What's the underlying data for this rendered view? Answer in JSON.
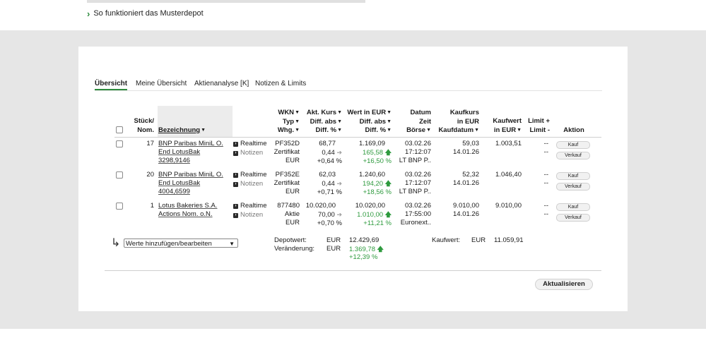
{
  "top_link": {
    "text": "So funktioniert das Musterdepot"
  },
  "tabs": [
    "Übersicht",
    "Meine Übersicht",
    "Aktienanalyse [K]",
    "Notizen & Limits"
  ],
  "headers": {
    "stueck": [
      "Stück/",
      "Nom."
    ],
    "bezeichnung": "Bezeichnung",
    "wkn": [
      "WKN",
      "Typ",
      "Whg."
    ],
    "kurs": [
      "Akt. Kurs",
      "Diff. abs",
      "Diff. %"
    ],
    "wert": [
      "Wert in EUR",
      "Diff. abs",
      "Diff. %"
    ],
    "datum": [
      "Datum",
      "Zeit",
      "Börse"
    ],
    "kaufkurs": [
      "Kaufkurs",
      "in EUR",
      "Kaufdatum"
    ],
    "kaufwert": [
      "Kaufwert",
      "in EUR"
    ],
    "limit": [
      "Limit +",
      "Limit -"
    ],
    "aktion": "Aktion"
  },
  "actions": {
    "realtime": "Realtime",
    "notizen": "Notizen",
    "kauf": "Kauf",
    "verkauf": "Verkauf"
  },
  "rows": [
    {
      "qty": "17",
      "name": [
        "BNP Paribas MiniL O.",
        "End LotusBak",
        "3298,9146"
      ],
      "wkn": "PF352D",
      "typ": "Zertifikat",
      "whg": "EUR",
      "kurs": "68,77",
      "kurs_diff_abs": "0,44",
      "kurs_diff_pct": "+0,64 %",
      "wert": "1.169,09",
      "wert_diff_abs": "165,58",
      "wert_diff_pct": "+16,50 %",
      "datum": "03.02.26",
      "zeit": "17:12:07",
      "boerse": "LT BNP P..",
      "kaufkurs": "59,03",
      "kaufdatum": "14.01.26",
      "kaufwert": "1.003,51",
      "limit_plus": "--",
      "limit_minus": "--"
    },
    {
      "qty": "20",
      "name": [
        "BNP Paribas MiniL O.",
        "End LotusBak",
        "4004,6599"
      ],
      "wkn": "PF352E",
      "typ": "Zertifikat",
      "whg": "EUR",
      "kurs": "62,03",
      "kurs_diff_abs": "0,44",
      "kurs_diff_pct": "+0,71 %",
      "wert": "1.240,60",
      "wert_diff_abs": "194,20",
      "wert_diff_pct": "+18,56 %",
      "datum": "03.02.26",
      "zeit": "17:12:07",
      "boerse": "LT BNP P..",
      "kaufkurs": "52,32",
      "kaufdatum": "14.01.26",
      "kaufwert": "1.046,40",
      "limit_plus": "--",
      "limit_minus": "--"
    },
    {
      "qty": "1",
      "name": [
        "Lotus Bakeries S.A.",
        "Actions Nom. o.N."
      ],
      "wkn": "877480",
      "typ": "Aktie",
      "whg": "EUR",
      "kurs": "10.020,00",
      "kurs_diff_abs": "70,00",
      "kurs_diff_pct": "+0,70 %",
      "wert": "10.020,00",
      "wert_diff_abs": "1.010,00",
      "wert_diff_pct": "+11,21 %",
      "datum": "03.02.26",
      "zeit": "17:55:00",
      "boerse": "Euronext..",
      "kaufkurs": "9.010,00",
      "kaufdatum": "14.01.26",
      "kaufwert": "9.010,00",
      "limit_plus": "--",
      "limit_minus": "--"
    }
  ],
  "footer": {
    "select_value": "Werte hinzufügen/bearbeiten",
    "depotwert_label": "Depotwert:",
    "veraenderung_label": "Veränderung:",
    "currency": "EUR",
    "depotwert": "12.429,69",
    "veraenderung_abs": "1.369,78",
    "veraenderung_pct": "+12,39 %",
    "kaufwert_label": "Kaufwert:",
    "kaufwert": "11.059,91"
  },
  "refresh_label": "Aktualisieren",
  "colors": {
    "accent_green": "#2e9a3e",
    "background": "#e6e6e6"
  }
}
